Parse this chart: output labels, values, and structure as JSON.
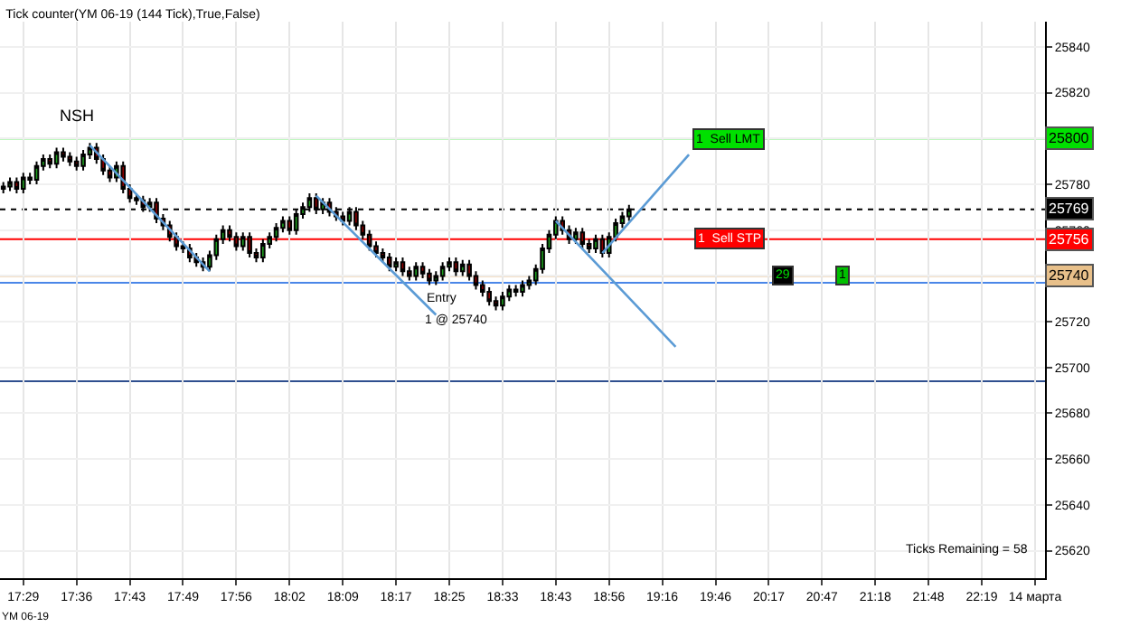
{
  "chart_data": {
    "type": "candlestick",
    "title": "Tick counter(YM 06-19 (144 Tick),True,False)",
    "categories": [
      null,
      null,
      null,
      "17:29",
      null,
      null,
      null,
      null,
      null,
      null,
      null,
      "17:36",
      null,
      null,
      null,
      null,
      null,
      null,
      null,
      "17:43",
      null,
      null,
      null,
      null,
      null,
      null,
      null,
      "17:49",
      null,
      null,
      null,
      null,
      null,
      null,
      null,
      "17:56",
      null,
      null,
      null,
      null,
      null,
      null,
      null,
      "18:02",
      null,
      null,
      null,
      null,
      null,
      null,
      null,
      "18:09",
      null,
      null,
      null,
      null,
      null,
      null,
      null,
      "18:17",
      null,
      null,
      null,
      null,
      null,
      null,
      null,
      "18:25",
      null,
      null,
      null,
      null,
      null,
      null,
      null,
      "18:33",
      null,
      null,
      null,
      null,
      null,
      null,
      null,
      "18:43",
      null,
      null,
      null,
      null,
      null,
      null,
      null,
      "18:56",
      null,
      null,
      null,
      null,
      null,
      null,
      null,
      "19:16",
      null,
      null,
      null,
      null,
      null,
      null,
      null,
      "19:46",
      null,
      null,
      null,
      null,
      null,
      null,
      null,
      "20:17",
      null,
      null,
      null,
      null,
      null,
      null,
      null,
      "20:47",
      null,
      null,
      null,
      null,
      null,
      null,
      null,
      "21:18",
      null,
      null,
      null,
      null,
      null,
      null,
      null,
      "21:48",
      null,
      null,
      null,
      null,
      null,
      null,
      null,
      "22:19",
      null,
      null,
      null,
      null,
      null,
      null,
      null,
      "14 марта",
      null
    ],
    "ohlc": [
      [
        25778,
        25781,
        25776,
        25779
      ],
      [
        25779,
        25783,
        25777,
        25781
      ],
      [
        25781,
        25783,
        25776,
        25778
      ],
      [
        25778,
        25785,
        25776,
        25783
      ],
      [
        25783,
        25785,
        25780,
        25782
      ],
      [
        25782,
        25790,
        25780,
        25788
      ],
      [
        25788,
        25793,
        25786,
        25791
      ],
      [
        25791,
        25793,
        25787,
        25789
      ],
      [
        25789,
        25796,
        25787,
        25794
      ],
      [
        25794,
        25796,
        25790,
        25792
      ],
      [
        25792,
        25794,
        25788,
        25790
      ],
      [
        25790,
        25792,
        25786,
        25788
      ],
      [
        25788,
        25795,
        25786,
        25793
      ],
      [
        25793,
        25798,
        25791,
        25796
      ],
      [
        25796,
        25798,
        25789,
        25791
      ],
      [
        25791,
        25793,
        25784,
        25786
      ],
      [
        25786,
        25788,
        25781,
        25783
      ],
      [
        25783,
        25790,
        25781,
        25788
      ],
      [
        25788,
        25790,
        25776,
        25778
      ],
      [
        25778,
        25780,
        25772,
        25774
      ],
      [
        25774,
        25776,
        25771,
        25773
      ],
      [
        25773,
        25775,
        25768,
        25770
      ],
      [
        25770,
        25774,
        25768,
        25772
      ],
      [
        25772,
        25774,
        25763,
        25765
      ],
      [
        25765,
        25767,
        25760,
        25762
      ],
      [
        25762,
        25764,
        25755,
        25757
      ],
      [
        25757,
        25759,
        25751,
        25753
      ],
      [
        25753,
        25755,
        25750,
        25752
      ],
      [
        25752,
        25754,
        25746,
        25748
      ],
      [
        25748,
        25750,
        25744,
        25746
      ],
      [
        25746,
        25748,
        25742,
        25744
      ],
      [
        25744,
        25751,
        25742,
        25749
      ],
      [
        25749,
        25758,
        25747,
        25756
      ],
      [
        25756,
        25762,
        25754,
        25760
      ],
      [
        25760,
        25762,
        25755,
        25757
      ],
      [
        25757,
        25759,
        25751,
        25753
      ],
      [
        25753,
        25759,
        25751,
        25757
      ],
      [
        25757,
        25759,
        25748,
        25750
      ],
      [
        25750,
        25752,
        25746,
        25748
      ],
      [
        25748,
        25756,
        25746,
        25754
      ],
      [
        25754,
        25759,
        25752,
        25757
      ],
      [
        25757,
        25763,
        25755,
        25761
      ],
      [
        25761,
        25766,
        25759,
        25764
      ],
      [
        25764,
        25766,
        25758,
        25760
      ],
      [
        25760,
        25769,
        25758,
        25767
      ],
      [
        25767,
        25772,
        25765,
        25770
      ],
      [
        25770,
        25776,
        25768,
        25774
      ],
      [
        25774,
        25776,
        25767,
        25769
      ],
      [
        25769,
        25774,
        25767,
        25772
      ],
      [
        25772,
        25774,
        25766,
        25768
      ],
      [
        25768,
        25770,
        25764,
        25766
      ],
      [
        25766,
        25768,
        25762,
        25764
      ],
      [
        25764,
        25770,
        25762,
        25768
      ],
      [
        25768,
        25770,
        25760,
        25762
      ],
      [
        25762,
        25764,
        25756,
        25758
      ],
      [
        25758,
        25760,
        25751,
        25753
      ],
      [
        25753,
        25755,
        25748,
        25750
      ],
      [
        25750,
        25752,
        25746,
        25748
      ],
      [
        25748,
        25750,
        25742,
        25744
      ],
      [
        25744,
        25748,
        25742,
        25746
      ],
      [
        25746,
        25748,
        25740,
        25742
      ],
      [
        25742,
        25744,
        25738,
        25740
      ],
      [
        25740,
        25746,
        25738,
        25744
      ],
      [
        25744,
        25746,
        25739,
        25741
      ],
      [
        25741,
        25743,
        25736,
        25738
      ],
      [
        25738,
        25742,
        25736,
        25740
      ],
      [
        25740,
        25746,
        25738,
        25744
      ],
      [
        25744,
        25748,
        25742,
        25746
      ],
      [
        25746,
        25748,
        25740,
        25742
      ],
      [
        25742,
        25747,
        25740,
        25745
      ],
      [
        25745,
        25747,
        25738,
        25740
      ],
      [
        25740,
        25742,
        25734,
        25736
      ],
      [
        25736,
        25738,
        25731,
        25733
      ],
      [
        25733,
        25735,
        25727,
        25729
      ],
      [
        25729,
        25731,
        25725,
        25727
      ],
      [
        25727,
        25733,
        25725,
        25731
      ],
      [
        25731,
        25736,
        25729,
        25734
      ],
      [
        25734,
        25736,
        25731,
        25733
      ],
      [
        25733,
        25738,
        25731,
        25736
      ],
      [
        25736,
        25740,
        25734,
        25738
      ],
      [
        25738,
        25745,
        25736,
        25743
      ],
      [
        25743,
        25754,
        25741,
        25752
      ],
      [
        25752,
        25760,
        25750,
        25758
      ],
      [
        25758,
        25766,
        25756,
        25764
      ],
      [
        25764,
        25766,
        25758,
        25760
      ],
      [
        25760,
        25762,
        25754,
        25756
      ],
      [
        25756,
        25761,
        25754,
        25759
      ],
      [
        25759,
        25761,
        25752,
        25754
      ],
      [
        25754,
        25756,
        25750,
        25752
      ],
      [
        25752,
        25758,
        25750,
        25756
      ],
      [
        25756,
        25758,
        25748,
        25750
      ],
      [
        25750,
        25759,
        25748,
        25757
      ],
      [
        25757,
        25765,
        25755,
        25763
      ],
      [
        25763,
        25768,
        25761,
        25766
      ],
      [
        25766,
        25771,
        25764,
        25769
      ],
      null,
      null,
      null,
      null,
      null,
      null,
      null,
      null,
      null,
      null,
      null,
      null,
      null,
      null,
      null,
      null,
      null,
      null,
      null,
      null,
      null,
      null,
      null,
      null,
      null,
      null,
      null,
      null,
      null,
      null,
      null,
      null,
      null,
      null,
      null,
      null,
      null,
      null,
      null,
      null,
      null,
      null,
      null,
      null,
      null,
      null,
      null,
      null,
      null,
      null,
      null,
      null,
      null,
      null,
      null,
      null,
      null,
      null,
      null,
      null,
      null,
      null
    ],
    "series": [
      {
        "type": "line",
        "color": "#5b9bd5",
        "values": [
          null,
          null,
          null,
          null,
          null,
          null,
          null,
          null,
          null,
          null,
          null,
          null,
          null,
          25797,
          null,
          null,
          null,
          null,
          null,
          null,
          null,
          null,
          null,
          null,
          null,
          null,
          null,
          null,
          null,
          null,
          null,
          25742,
          null,
          null,
          null,
          null,
          null,
          null,
          null,
          null,
          null,
          null,
          null,
          null,
          null,
          null,
          null,
          null,
          null,
          null,
          null,
          null,
          null,
          null,
          null,
          null,
          null,
          null,
          null,
          null,
          null,
          null,
          null,
          null,
          null,
          null,
          null,
          null,
          null,
          null,
          null,
          null,
          null,
          null,
          null,
          null,
          null,
          null,
          null,
          null,
          null,
          null,
          null,
          null,
          null,
          null,
          null,
          null,
          null,
          null,
          null,
          null,
          null,
          null,
          null,
          null,
          null,
          null,
          null,
          null,
          null,
          null,
          null,
          null,
          null,
          null,
          null,
          null,
          null,
          null,
          null,
          null,
          null,
          null,
          null,
          null,
          null,
          null,
          null,
          null,
          null,
          null,
          null,
          null,
          null,
          null,
          null,
          null,
          null,
          null,
          null,
          null,
          null,
          null,
          null,
          null,
          null,
          null,
          null,
          null,
          null,
          null,
          null,
          null,
          null,
          null,
          null,
          null,
          null,
          null,
          null,
          null,
          null,
          null,
          null,
          null,
          null
        ]
      },
      {
        "type": "line",
        "color": "#5b9bd5",
        "values": [
          null,
          null,
          null,
          null,
          null,
          null,
          null,
          null,
          null,
          null,
          null,
          null,
          null,
          null,
          null,
          null,
          null,
          null,
          null,
          null,
          null,
          null,
          null,
          null,
          null,
          null,
          null,
          null,
          null,
          null,
          null,
          null,
          null,
          null,
          null,
          null,
          null,
          null,
          null,
          null,
          null,
          null,
          null,
          null,
          null,
          null,
          null,
          25775,
          null,
          null,
          null,
          null,
          null,
          null,
          null,
          null,
          null,
          null,
          null,
          null,
          null,
          null,
          null,
          null,
          null,
          25723,
          null,
          null,
          null,
          null,
          null,
          null,
          null,
          null,
          null,
          null,
          null,
          null,
          null,
          null,
          null,
          null,
          null,
          null,
          null,
          null,
          null,
          null,
          null,
          null,
          null,
          null,
          null,
          null,
          null,
          null,
          null,
          null,
          null,
          null,
          null,
          null,
          null,
          null,
          null,
          null,
          null,
          null,
          null,
          null,
          null,
          null,
          null,
          null,
          null,
          null,
          null,
          null,
          null,
          null,
          null,
          null,
          null,
          null,
          null,
          null,
          null,
          null,
          null,
          null,
          null,
          null,
          null,
          null,
          null,
          null,
          null,
          null,
          null,
          null,
          null,
          null,
          null,
          null,
          null,
          null,
          null,
          null,
          null,
          null,
          null,
          null,
          null,
          null,
          null,
          null,
          null
        ]
      },
      {
        "type": "line",
        "color": "#5b9bd5",
        "values": [
          null,
          null,
          null,
          null,
          null,
          null,
          null,
          null,
          null,
          null,
          null,
          null,
          null,
          null,
          null,
          null,
          null,
          null,
          null,
          null,
          null,
          null,
          null,
          null,
          null,
          null,
          null,
          null,
          null,
          null,
          null,
          null,
          null,
          null,
          null,
          null,
          null,
          null,
          null,
          null,
          null,
          null,
          null,
          null,
          null,
          null,
          null,
          null,
          null,
          null,
          null,
          null,
          null,
          null,
          null,
          null,
          null,
          null,
          null,
          null,
          null,
          null,
          null,
          null,
          null,
          null,
          null,
          null,
          null,
          null,
          null,
          null,
          null,
          null,
          null,
          null,
          null,
          null,
          null,
          null,
          null,
          null,
          null,
          25764,
          null,
          null,
          null,
          null,
          null,
          null,
          null,
          null,
          null,
          null,
          null,
          null,
          null,
          null,
          null,
          null,
          null,
          25709,
          null,
          null,
          null,
          null,
          null,
          null,
          null,
          null,
          null,
          null,
          null,
          null,
          null,
          null,
          null,
          null,
          null,
          null,
          null,
          null,
          null,
          null,
          null,
          null,
          null,
          null,
          null,
          null,
          null,
          null,
          null,
          null,
          null,
          null,
          null,
          null,
          null,
          null,
          null,
          null,
          null,
          null,
          null,
          null,
          null,
          null,
          null,
          null,
          null,
          null,
          null,
          null,
          null,
          null,
          null
        ]
      },
      {
        "type": "line",
        "color": "#5b9bd5",
        "values": [
          null,
          null,
          null,
          null,
          null,
          null,
          null,
          null,
          null,
          null,
          null,
          null,
          null,
          null,
          null,
          null,
          null,
          null,
          null,
          null,
          null,
          null,
          null,
          null,
          null,
          null,
          null,
          null,
          null,
          null,
          null,
          null,
          null,
          null,
          null,
          null,
          null,
          null,
          null,
          null,
          null,
          null,
          null,
          null,
          null,
          null,
          null,
          null,
          null,
          null,
          null,
          null,
          null,
          null,
          null,
          null,
          null,
          null,
          null,
          null,
          null,
          null,
          null,
          null,
          null,
          null,
          null,
          null,
          null,
          null,
          null,
          null,
          null,
          null,
          null,
          null,
          null,
          null,
          null,
          null,
          null,
          null,
          null,
          null,
          null,
          null,
          null,
          null,
          null,
          null,
          25750,
          null,
          null,
          null,
          null,
          null,
          null,
          null,
          null,
          null,
          null,
          null,
          null,
          25793,
          null,
          null,
          null,
          null,
          null,
          null,
          null,
          null,
          null,
          null,
          null,
          null,
          null,
          null,
          null,
          null,
          null,
          null,
          null,
          null,
          null,
          null,
          null,
          null,
          null,
          null,
          null,
          null,
          null,
          null,
          null,
          null,
          null,
          null,
          null,
          null,
          null,
          null,
          null,
          null,
          null,
          null,
          null,
          null,
          null,
          null,
          null,
          null,
          null,
          null,
          null,
          null,
          null
        ]
      }
    ],
    "ylim": [
      25608,
      25851
    ],
    "yticks": [
      25620,
      25640,
      25660,
      25680,
      25700,
      25720,
      25740,
      25760,
      25780,
      25800,
      25820,
      25840
    ],
    "grid": true,
    "ref_lines": [
      {
        "axis": "y",
        "value": 25800,
        "label": "25800",
        "color": "#00e000"
      },
      {
        "axis": "y",
        "value": 25769,
        "label": "25769",
        "color": "#000000",
        "line_style": "dotted"
      },
      {
        "axis": "y",
        "value": 25756,
        "label": "25756",
        "color": "#ff0000"
      },
      {
        "axis": "y",
        "value": 25740,
        "label": "25740",
        "color": "#e8c08a"
      },
      {
        "axis": "y",
        "value": 25737,
        "color": "#4a86e8"
      },
      {
        "axis": "y",
        "value": 25694,
        "color": "#2f4f8f"
      }
    ],
    "annotations": [
      "NSH",
      "Entry",
      "1 @ 25740",
      {
        "text": "1  Sell LMT",
        "y": 25800
      },
      {
        "text": "1  Sell STP",
        "y": 25756
      },
      {
        "text": "29",
        "y": 25740
      },
      {
        "text": "1",
        "y": 25740
      },
      "Ticks Remaining = 58",
      "YM 06-19"
    ]
  }
}
